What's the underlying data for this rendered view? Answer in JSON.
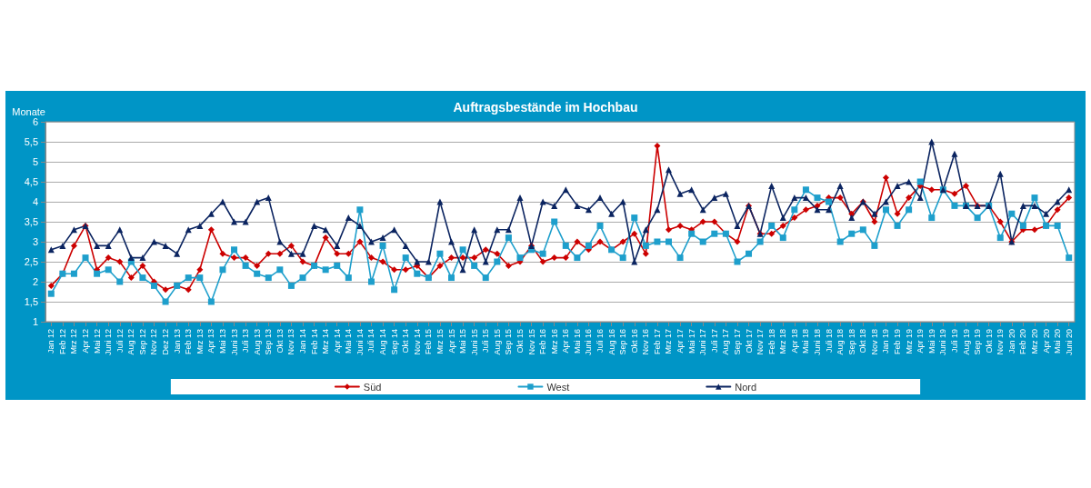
{
  "chart_data": {
    "type": "line",
    "title": "Auftragsbestände im Hochbau",
    "ylabel": "Monate",
    "categories": [
      "Jan 12",
      "Feb 12",
      "Mrz 12",
      "Apr 12",
      "Mai 12",
      "Juni 12",
      "Juli 12",
      "Aug 12",
      "Sep 12",
      "Nov 12",
      "Dez 12",
      "Jan 13",
      "Feb 13",
      "Mrz 13",
      "Apr 13",
      "Mai 13",
      "Juni 13",
      "Juli 13",
      "Aug 13",
      "Sep 13",
      "Okt 13",
      "Nov 13",
      "Jan 14",
      "Feb 14",
      "Mrz 14",
      "Apr 14",
      "Mai 14",
      "Juni 14",
      "Juli 14",
      "Aug 14",
      "Sep 14",
      "Okt 14",
      "Nov 14",
      "Feb 15",
      "Mrz 15",
      "Apr 15",
      "Mai 15",
      "Juni 15",
      "Juli 15",
      "Aug 15",
      "Sep 15",
      "Okt 15",
      "Nov 15",
      "Feb 16",
      "Mrz 16",
      "Apr 16",
      "Mai 16",
      "Juni 16",
      "Juli 16",
      "Aug 16",
      "Sep 16",
      "Okt 16",
      "Nov 16",
      "Feb 17",
      "Mrz 17",
      "Apr 17",
      "Mai 17",
      "Juni 17",
      "Juli 17",
      "Aug 17",
      "Sep 17",
      "Okt 17",
      "Nov 17",
      "Feb 18",
      "Mrz 18",
      "Apr 18",
      "Mai 18",
      "Juni 18",
      "Juli 18",
      "Aug 18",
      "Sep 18",
      "Okt 18",
      "Nov 18",
      "Jan 19",
      "Feb 19",
      "Mrz 19",
      "Apr 19",
      "Mai 19",
      "Juni 19",
      "Juli 19",
      "Aug 19",
      "Sep 19",
      "Okt 19",
      "Nov 19",
      "Jan 20",
      "Feb 20",
      "Mrz 20",
      "Apr 20",
      "Mai 20",
      "Juni 20"
    ],
    "series": [
      {
        "name": "Süd",
        "color": "#cc0000",
        "marker": "diamond",
        "values": [
          1.9,
          2.2,
          2.9,
          3.4,
          2.3,
          2.6,
          2.5,
          2.1,
          2.4,
          2.0,
          1.8,
          1.9,
          1.8,
          2.3,
          3.3,
          2.7,
          2.6,
          2.6,
          2.4,
          2.7,
          2.7,
          2.9,
          2.5,
          2.4,
          3.1,
          2.7,
          2.7,
          3.0,
          2.6,
          2.5,
          2.3,
          2.3,
          2.4,
          2.1,
          2.4,
          2.6,
          2.6,
          2.6,
          2.8,
          2.7,
          2.4,
          2.5,
          2.9,
          2.5,
          2.6,
          2.6,
          3.0,
          2.8,
          3.0,
          2.8,
          3.0,
          3.2,
          2.7,
          5.4,
          3.3,
          3.4,
          3.3,
          3.5,
          3.5,
          3.2,
          3.0,
          3.9,
          3.2,
          3.2,
          3.4,
          3.6,
          3.8,
          3.9,
          4.1,
          4.1,
          3.7,
          4.0,
          3.5,
          4.6,
          3.7,
          4.1,
          4.4,
          4.3,
          4.3,
          4.2,
          4.4,
          3.9,
          3.9,
          3.5,
          3.0,
          3.3,
          3.3,
          3.4,
          3.8,
          4.1
        ]
      },
      {
        "name": "West",
        "color": "#1e9fcc",
        "marker": "square",
        "values": [
          1.7,
          2.2,
          2.2,
          2.6,
          2.2,
          2.3,
          2.0,
          2.5,
          2.1,
          1.9,
          1.5,
          1.9,
          2.1,
          2.1,
          1.5,
          2.3,
          2.8,
          2.4,
          2.2,
          2.1,
          2.3,
          1.9,
          2.1,
          2.4,
          2.3,
          2.4,
          2.1,
          3.8,
          2.0,
          2.9,
          1.8,
          2.6,
          2.2,
          2.1,
          2.7,
          2.1,
          2.8,
          2.4,
          2.1,
          2.5,
          3.1,
          2.6,
          2.8,
          2.7,
          3.5,
          2.9,
          2.6,
          2.9,
          3.4,
          2.8,
          2.6,
          3.6,
          2.9,
          3.0,
          3.0,
          2.6,
          3.2,
          3.0,
          3.2,
          3.2,
          2.5,
          2.7,
          3.0,
          3.4,
          3.1,
          3.8,
          4.3,
          4.1,
          4.0,
          3.0,
          3.2,
          3.3,
          2.9,
          3.8,
          3.4,
          3.8,
          4.5,
          3.6,
          4.3,
          3.9,
          3.9,
          3.6,
          3.9,
          3.1,
          3.7,
          3.4,
          4.1,
          3.4,
          3.4,
          2.6
        ]
      },
      {
        "name": "Nord",
        "color": "#0b2460",
        "marker": "triangle",
        "values": [
          2.8,
          2.9,
          3.3,
          3.4,
          2.9,
          2.9,
          3.3,
          2.6,
          2.6,
          3.0,
          2.9,
          2.7,
          3.3,
          3.4,
          3.7,
          4.0,
          3.5,
          3.5,
          4.0,
          4.1,
          3.0,
          2.7,
          2.7,
          3.4,
          3.3,
          2.9,
          3.6,
          3.4,
          3.0,
          3.1,
          3.3,
          2.9,
          2.5,
          2.5,
          4.0,
          3.0,
          2.3,
          3.3,
          2.5,
          3.3,
          3.3,
          4.1,
          2.9,
          4.0,
          3.9,
          4.3,
          3.9,
          3.8,
          4.1,
          3.7,
          4.0,
          2.5,
          3.3,
          3.8,
          4.8,
          4.2,
          4.3,
          3.8,
          4.1,
          4.2,
          3.4,
          3.9,
          3.2,
          4.4,
          3.6,
          4.1,
          4.1,
          3.8,
          3.8,
          4.4,
          3.6,
          4.0,
          3.7,
          4.0,
          4.4,
          4.5,
          4.1,
          5.5,
          4.3,
          5.2,
          3.9,
          3.9,
          3.9,
          4.7,
          3.0,
          3.9,
          3.9,
          3.7,
          4.0,
          4.3
        ]
      }
    ],
    "ylim": [
      1,
      6
    ],
    "yticks": [
      1,
      {
        "value": 1.5,
        "label": "1,5"
      },
      2,
      {
        "value": 2.5,
        "label": "2,5"
      },
      3,
      {
        "value": 3.5,
        "label": "3,5"
      },
      4,
      {
        "value": 4.5,
        "label": "4,5"
      },
      5,
      {
        "value": 5.5,
        "label": "5,5"
      },
      6
    ],
    "grid": "y",
    "legend": "bottom",
    "line_style": "solid"
  }
}
